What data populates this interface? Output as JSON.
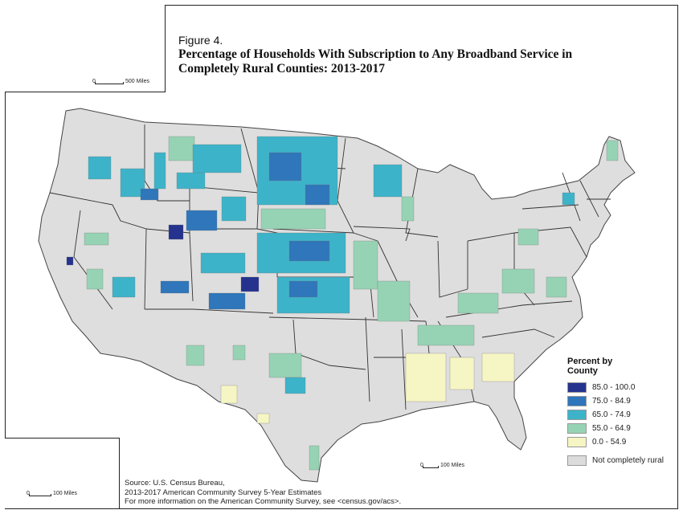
{
  "figure": {
    "label": "Figure 4.",
    "title": "Percentage of Households With Subscription to Any Broadband Service in Completely Rural Counties: 2013-2017"
  },
  "legend": {
    "title": "Percent by County",
    "classes": [
      {
        "label": "85.0 - 100.0",
        "color": "#25338f"
      },
      {
        "label": "75.0 - 84.9",
        "color": "#2f76ba"
      },
      {
        "label": "65.0 - 74.9",
        "color": "#3db3c9"
      },
      {
        "label": "55.0 - 64.9",
        "color": "#96d3b4"
      },
      {
        "label": "0.0 - 54.9",
        "color": "#f6f5c4"
      }
    ],
    "not_rural": {
      "label": "Not completely rural",
      "color": "#dcdcdc"
    }
  },
  "scales": {
    "main": "100 Miles",
    "alaska": "500 Miles",
    "hawaii": "100 Miles",
    "zero": "0"
  },
  "source_lines": [
    "Source: U.S. Census Bureau,",
    "2013-2017 American Community Survey 5-Year Estimates",
    "For more information on the American Community Survey, see <census.gov/acs>."
  ]
}
